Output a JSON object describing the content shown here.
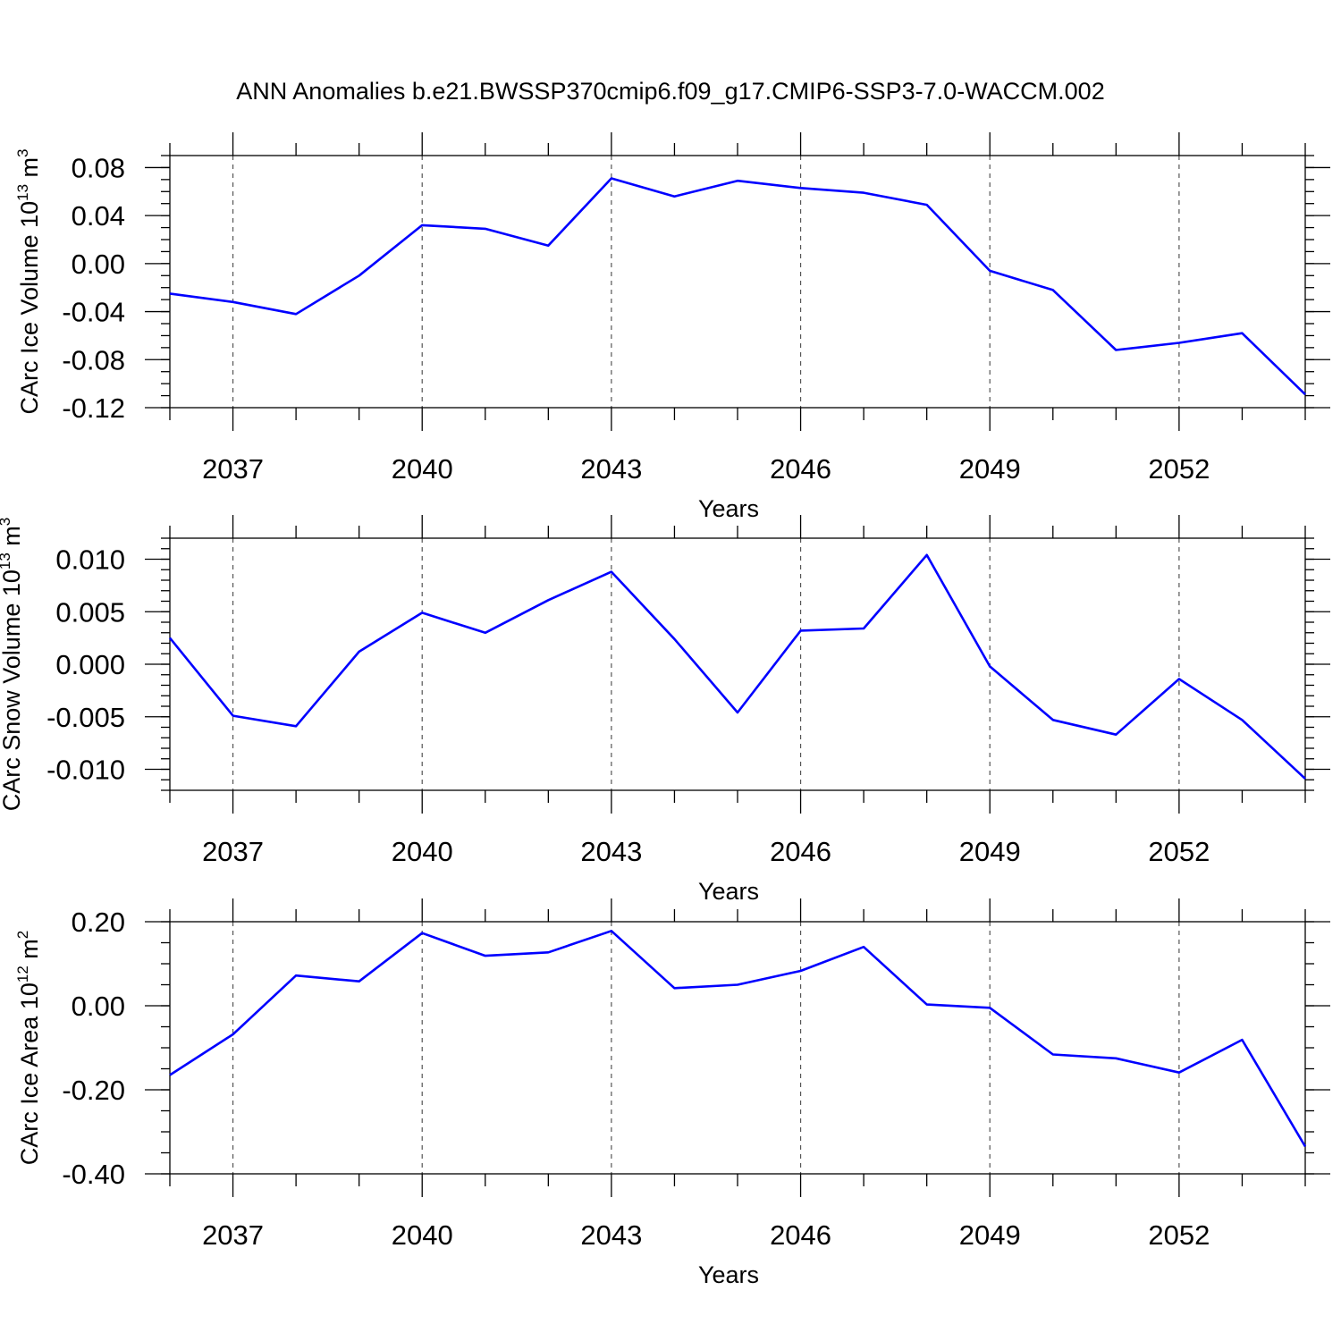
{
  "title": "ANN Anomalies b.e21.BWSSP370cmip6.f09_g17.CMIP6-SSP3-7.0-WACCM.002",
  "colors": {
    "series": "#0000ff",
    "grid": "#555555",
    "axis": "#000000"
  },
  "chart_data": [
    {
      "type": "line",
      "xlabel": "Years",
      "ylabel": {
        "main": "CArc Ice Volume 10",
        "exp": "13",
        "unit": " m",
        "unit_exp": "3"
      },
      "x": [
        2036,
        2037,
        2038,
        2039,
        2040,
        2041,
        2042,
        2043,
        2044,
        2045,
        2046,
        2047,
        2048,
        2049,
        2050,
        2051,
        2052,
        2053,
        2054
      ],
      "values": [
        -0.025,
        -0.032,
        -0.042,
        -0.01,
        0.032,
        0.029,
        0.015,
        0.071,
        0.056,
        0.069,
        0.063,
        0.059,
        0.049,
        -0.006,
        -0.022,
        -0.072,
        -0.066,
        -0.058,
        -0.109
      ],
      "xlim": [
        2036,
        2054
      ],
      "ylim": [
        -0.12,
        0.09
      ],
      "xticks": [
        2037,
        2040,
        2043,
        2046,
        2049,
        2052
      ],
      "xtick_labels": [
        "2037",
        "2040",
        "2043",
        "2046",
        "2049",
        "2052"
      ],
      "yticks": [
        -0.12,
        -0.08,
        -0.04,
        0.0,
        0.04,
        0.08
      ],
      "ytick_labels": [
        "-0.12",
        "-0.08",
        "-0.04",
        "0.00",
        "0.04",
        "0.08"
      ],
      "yminor_step": 0.01,
      "grid": "vertical dashed at major x ticks"
    },
    {
      "type": "line",
      "xlabel": "Years",
      "ylabel": {
        "main": "CArc Snow Volume 10",
        "exp": "13",
        "unit": " m",
        "unit_exp": "3"
      },
      "x": [
        2036,
        2037,
        2038,
        2039,
        2040,
        2041,
        2042,
        2043,
        2044,
        2045,
        2046,
        2047,
        2048,
        2049,
        2050,
        2051,
        2052,
        2053,
        2054
      ],
      "values": [
        0.0025,
        -0.0049,
        -0.0059,
        0.0012,
        0.0049,
        0.003,
        0.0061,
        0.0088,
        0.0024,
        -0.0046,
        0.0032,
        0.0034,
        0.0104,
        -0.0002,
        -0.0053,
        -0.0067,
        -0.0014,
        -0.0053,
        -0.0109
      ],
      "xlim": [
        2036,
        2054
      ],
      "ylim": [
        -0.012,
        0.012
      ],
      "xticks": [
        2037,
        2040,
        2043,
        2046,
        2049,
        2052
      ],
      "xtick_labels": [
        "2037",
        "2040",
        "2043",
        "2046",
        "2049",
        "2052"
      ],
      "yticks": [
        -0.01,
        -0.005,
        0.0,
        0.005,
        0.01
      ],
      "ytick_labels": [
        "-0.010",
        "-0.005",
        "0.000",
        "0.005",
        "0.010"
      ],
      "yminor_step": 0.001,
      "grid": "vertical dashed at major x ticks"
    },
    {
      "type": "line",
      "xlabel": "Years",
      "ylabel": {
        "main": "CArc Ice Area 10",
        "exp": "12",
        "unit": " m",
        "unit_exp": "2"
      },
      "x": [
        2036,
        2037,
        2038,
        2039,
        2040,
        2041,
        2042,
        2043,
        2044,
        2045,
        2046,
        2047,
        2048,
        2049,
        2050,
        2051,
        2052,
        2053,
        2054
      ],
      "values": [
        -0.165,
        -0.068,
        0.072,
        0.058,
        0.173,
        0.119,
        0.127,
        0.178,
        0.042,
        0.05,
        0.083,
        0.14,
        0.003,
        -0.005,
        -0.116,
        -0.125,
        -0.159,
        -0.081,
        -0.335
      ],
      "xlim": [
        2036,
        2054
      ],
      "ylim": [
        -0.4,
        0.2
      ],
      "xticks": [
        2037,
        2040,
        2043,
        2046,
        2049,
        2052
      ],
      "xtick_labels": [
        "2037",
        "2040",
        "2043",
        "2046",
        "2049",
        "2052"
      ],
      "yticks": [
        -0.4,
        -0.2,
        0.0,
        0.2
      ],
      "ytick_labels": [
        "-0.40",
        "-0.20",
        "0.00",
        "0.20"
      ],
      "yminor_step": 0.05,
      "grid": "vertical dashed at major x ticks"
    }
  ]
}
